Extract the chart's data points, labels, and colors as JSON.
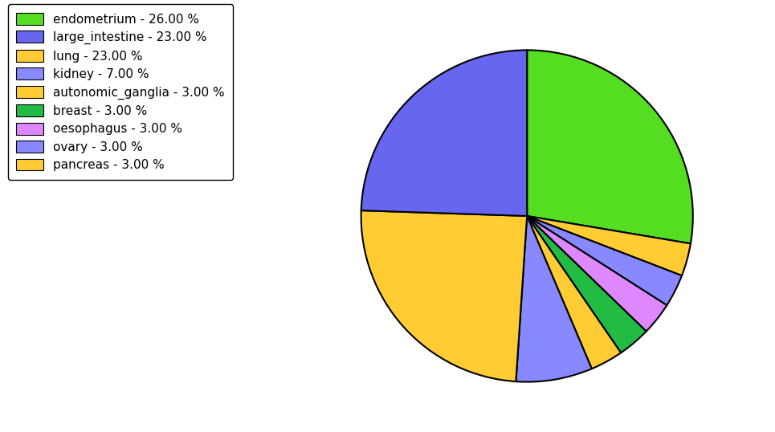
{
  "labels": [
    "endometrium - 26.00 %",
    "large_intestine - 23.00 %",
    "lung - 23.00 %",
    "kidney - 7.00 %",
    "autonomic_ganglia - 3.00 %",
    "breast - 3.00 %",
    "oesophagus - 3.00 %",
    "ovary - 3.00 %",
    "pancreas - 3.00 %"
  ],
  "pie_order": [
    "endometrium",
    "pancreas",
    "ovary",
    "oesophagus",
    "breast",
    "autonomic_ganglia",
    "kidney",
    "lung",
    "large_intestine"
  ],
  "pie_values": [
    26,
    3,
    3,
    3,
    3,
    3,
    7,
    23,
    23
  ],
  "pie_colors": [
    "#55dd22",
    "#ffcc33",
    "#8888ff",
    "#dd88ff",
    "#22bb44",
    "#ffcc33",
    "#8888ff",
    "#ffcc33",
    "#6666ee"
  ],
  "legend_colors": [
    "#55dd22",
    "#6666ee",
    "#ffcc33",
    "#8888ff",
    "#ffcc33",
    "#22bb44",
    "#dd88ff",
    "#8888ff",
    "#ffcc33"
  ],
  "startangle": 90,
  "counterclock": false,
  "figsize": [
    9.65,
    5.38
  ],
  "dpi": 100
}
